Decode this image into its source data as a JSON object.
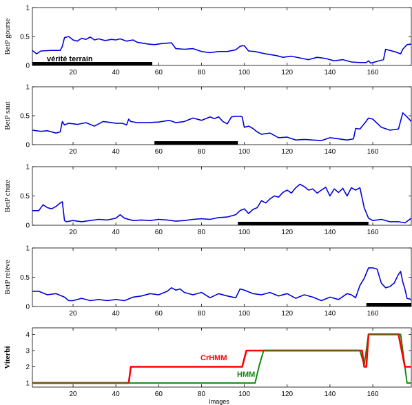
{
  "colors": {
    "belief": "#0000dd",
    "crhmm": "#ff0000",
    "hmm": "#118811",
    "ground_truth": "#000000",
    "olive": "#6b5a10"
  },
  "chart_data": [
    {
      "type": "line",
      "ylabel": "BetP gourse",
      "xlim": [
        1,
        178
      ],
      "ylim": [
        0,
        1
      ],
      "xticks": [
        20,
        40,
        60,
        80,
        100,
        120,
        140,
        160
      ],
      "yticks": [
        0,
        0.5,
        1
      ],
      "ytick_labels": [
        "0",
        "0.5",
        "1"
      ],
      "annotation": "vérité terrain",
      "ground_truth_range": [
        1,
        57
      ],
      "series": [
        {
          "x": [
            1,
            3,
            5,
            10,
            14,
            15,
            16,
            18,
            20,
            22,
            24,
            26,
            28,
            30,
            32,
            35,
            38,
            40,
            42,
            45,
            48,
            50,
            55,
            58,
            62,
            66,
            68,
            72,
            76,
            80,
            84,
            88,
            92,
            96,
            98,
            99,
            100,
            102,
            105,
            110,
            115,
            118,
            122,
            126,
            130,
            134,
            138,
            142,
            146,
            150,
            154,
            157,
            158,
            159,
            160,
            162,
            165,
            166,
            168,
            171,
            173,
            174,
            176,
            178
          ],
          "y": [
            0.26,
            0.2,
            0.25,
            0.26,
            0.26,
            0.33,
            0.48,
            0.5,
            0.44,
            0.42,
            0.47,
            0.45,
            0.49,
            0.44,
            0.46,
            0.43,
            0.45,
            0.44,
            0.46,
            0.42,
            0.44,
            0.4,
            0.37,
            0.36,
            0.38,
            0.39,
            0.29,
            0.28,
            0.29,
            0.24,
            0.22,
            0.24,
            0.24,
            0.27,
            0.33,
            0.34,
            0.34,
            0.25,
            0.24,
            0.2,
            0.17,
            0.14,
            0.16,
            0.13,
            0.1,
            0.14,
            0.12,
            0.08,
            0.1,
            0.06,
            0.05,
            0.05,
            0.08,
            0.04,
            0.05,
            0.07,
            0.1,
            0.28,
            0.26,
            0.23,
            0.2,
            0.28,
            0.36,
            0.37
          ]
        }
      ]
    },
    {
      "type": "line",
      "ylabel": "BetP saut",
      "xlim": [
        1,
        178
      ],
      "ylim": [
        0,
        1
      ],
      "xticks": [
        20,
        40,
        60,
        80,
        100,
        120,
        140,
        160
      ],
      "yticks": [
        0,
        0.5,
        1
      ],
      "ytick_labels": [
        "0",
        "0.5",
        "1"
      ],
      "ground_truth_range": [
        58,
        97
      ],
      "series": [
        {
          "x": [
            1,
            5,
            8,
            12,
            14,
            15,
            16,
            18,
            22,
            26,
            30,
            32,
            34,
            36,
            40,
            43,
            45,
            46,
            47,
            50,
            55,
            60,
            65,
            68,
            72,
            76,
            80,
            84,
            86,
            88,
            90,
            92,
            94,
            96,
            98,
            99,
            100,
            102,
            104,
            106,
            108,
            112,
            116,
            120,
            124,
            128,
            132,
            136,
            140,
            144,
            148,
            151,
            152,
            154,
            156,
            158,
            160,
            164,
            168,
            172,
            174,
            176,
            178
          ],
          "y": [
            0.25,
            0.23,
            0.24,
            0.2,
            0.22,
            0.4,
            0.34,
            0.37,
            0.35,
            0.38,
            0.32,
            0.36,
            0.4,
            0.39,
            0.37,
            0.37,
            0.34,
            0.44,
            0.4,
            0.38,
            0.38,
            0.39,
            0.42,
            0.38,
            0.4,
            0.46,
            0.42,
            0.48,
            0.45,
            0.48,
            0.4,
            0.36,
            0.48,
            0.49,
            0.49,
            0.48,
            0.3,
            0.32,
            0.28,
            0.22,
            0.18,
            0.2,
            0.12,
            0.13,
            0.08,
            0.09,
            0.08,
            0.07,
            0.12,
            0.1,
            0.08,
            0.1,
            0.28,
            0.27,
            0.36,
            0.46,
            0.44,
            0.3,
            0.25,
            0.27,
            0.55,
            0.48,
            0.4
          ]
        }
      ]
    },
    {
      "type": "line",
      "ylabel": "BetP chute",
      "xlim": [
        1,
        178
      ],
      "ylim": [
        0,
        1
      ],
      "xticks": [
        20,
        40,
        60,
        80,
        100,
        120,
        140,
        160
      ],
      "yticks": [
        0,
        0.5,
        1
      ],
      "ytick_labels": [
        "0",
        "0.5",
        "1"
      ],
      "ground_truth_range": [
        97,
        158
      ],
      "series": [
        {
          "x": [
            1,
            4,
            6,
            8,
            10,
            12,
            14,
            15,
            16,
            17,
            20,
            24,
            28,
            32,
            36,
            40,
            42,
            44,
            48,
            52,
            56,
            60,
            64,
            68,
            72,
            76,
            80,
            84,
            88,
            92,
            96,
            98,
            100,
            102,
            104,
            106,
            108,
            110,
            112,
            114,
            116,
            118,
            120,
            122,
            124,
            126,
            128,
            130,
            132,
            134,
            136,
            138,
            140,
            142,
            144,
            146,
            148,
            150,
            152,
            154,
            156,
            158,
            160,
            164,
            168,
            172,
            175,
            178
          ],
          "y": [
            0.25,
            0.25,
            0.35,
            0.3,
            0.28,
            0.32,
            0.38,
            0.4,
            0.08,
            0.06,
            0.08,
            0.06,
            0.08,
            0.1,
            0.09,
            0.12,
            0.18,
            0.12,
            0.08,
            0.09,
            0.08,
            0.1,
            0.09,
            0.07,
            0.08,
            0.1,
            0.11,
            0.1,
            0.13,
            0.14,
            0.18,
            0.25,
            0.28,
            0.2,
            0.27,
            0.3,
            0.42,
            0.38,
            0.45,
            0.5,
            0.48,
            0.56,
            0.6,
            0.55,
            0.64,
            0.7,
            0.66,
            0.6,
            0.62,
            0.55,
            0.6,
            0.65,
            0.5,
            0.62,
            0.56,
            0.63,
            0.5,
            0.64,
            0.6,
            0.64,
            0.3,
            0.12,
            0.08,
            0.1,
            0.06,
            0.06,
            0.04,
            0.12
          ]
        }
      ]
    },
    {
      "type": "line",
      "ylabel": "BetP relève",
      "xlim": [
        1,
        178
      ],
      "ylim": [
        0,
        1
      ],
      "xticks": [
        20,
        40,
        60,
        80,
        100,
        120,
        140,
        160
      ],
      "yticks": [
        0,
        0.5,
        1
      ],
      "ytick_labels": [
        "0",
        "0.5",
        "1"
      ],
      "ground_truth_range": [
        157,
        178
      ],
      "series": [
        {
          "x": [
            1,
            4,
            8,
            12,
            16,
            18,
            20,
            24,
            28,
            32,
            36,
            40,
            44,
            48,
            52,
            56,
            60,
            64,
            66,
            68,
            70,
            72,
            76,
            80,
            84,
            88,
            92,
            96,
            98,
            100,
            104,
            108,
            112,
            116,
            120,
            124,
            128,
            132,
            136,
            140,
            144,
            148,
            150,
            152,
            154,
            156,
            158,
            160,
            162,
            164,
            166,
            168,
            170,
            172,
            173,
            174,
            175,
            176,
            178
          ],
          "y": [
            0.26,
            0.26,
            0.2,
            0.22,
            0.16,
            0.1,
            0.1,
            0.14,
            0.1,
            0.12,
            0.1,
            0.12,
            0.1,
            0.16,
            0.18,
            0.22,
            0.2,
            0.26,
            0.32,
            0.28,
            0.3,
            0.24,
            0.2,
            0.24,
            0.15,
            0.22,
            0.18,
            0.15,
            0.3,
            0.28,
            0.22,
            0.2,
            0.24,
            0.18,
            0.22,
            0.14,
            0.2,
            0.16,
            0.1,
            0.16,
            0.12,
            0.22,
            0.2,
            0.15,
            0.36,
            0.48,
            0.66,
            0.66,
            0.64,
            0.4,
            0.32,
            0.34,
            0.4,
            0.55,
            0.6,
            0.42,
            0.3,
            0.14,
            0.12
          ]
        }
      ]
    },
    {
      "type": "line",
      "ylabel": "Viterbi",
      "xlabel": "Images",
      "xlim": [
        1,
        178
      ],
      "ylim": [
        0.75,
        4.4
      ],
      "xticks": [
        20,
        40,
        60,
        80,
        100,
        120,
        140,
        160
      ],
      "yticks": [
        1,
        2,
        3,
        4
      ],
      "ytick_labels": [
        "1",
        "2",
        "3",
        "4"
      ],
      "series": [
        {
          "name": "HMM",
          "x": [
            1,
            105,
            107,
            109,
            154,
            156,
            158,
            173,
            176,
            178
          ],
          "y": [
            1,
            1,
            2.1,
            3,
            3,
            2.1,
            4,
            4,
            1,
            1
          ]
        },
        {
          "name": "CrHMM",
          "x": [
            1,
            46,
            47,
            99,
            101,
            155,
            156,
            157,
            158,
            172,
            175,
            178
          ],
          "y": [
            1,
            1,
            2,
            2,
            3,
            3,
            2,
            2,
            4,
            4,
            2,
            2
          ]
        }
      ]
    }
  ]
}
